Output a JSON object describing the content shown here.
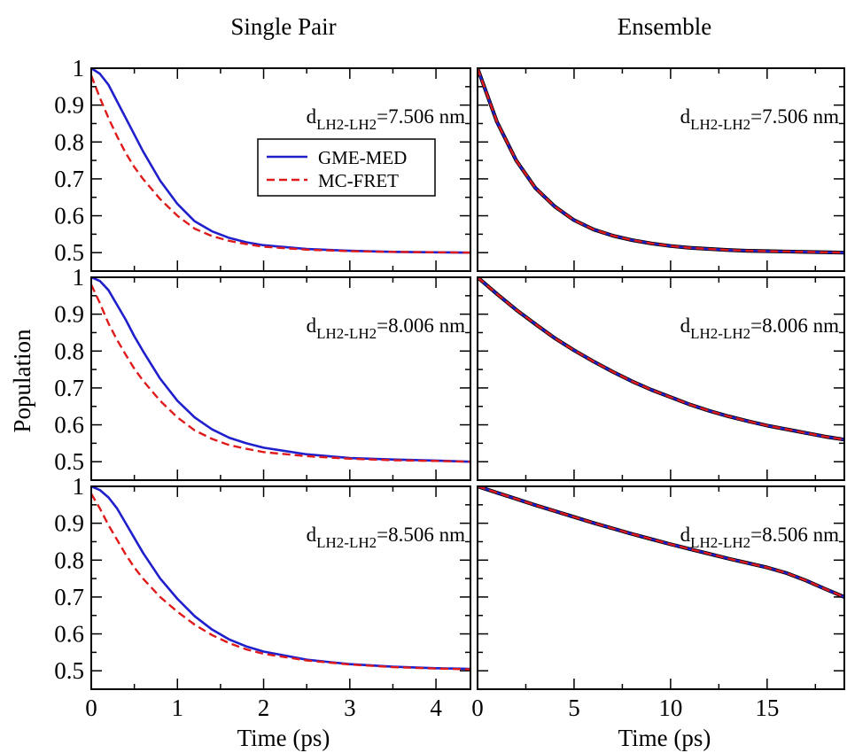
{
  "figure": {
    "column_titles": [
      "Single Pair",
      "Ensemble"
    ],
    "ylabel": "Population",
    "xlabel": "Time (ps)"
  },
  "colors": {
    "gme_med": "#1f1fcc",
    "mc_fret": "#e01a1a",
    "ensemble_underlay": "#000000"
  },
  "legend": {
    "placement": "top-center of top-left panel",
    "entries": [
      "GME-MED",
      "MC-FRET"
    ]
  },
  "chart_data": [
    {
      "type": "line",
      "panel": "single-pair-top",
      "column": 0,
      "row": 0,
      "annotation": {
        "main": "d",
        "sub": "LH2-LH2",
        "value": "=7.506 nm"
      },
      "xlim": [
        0,
        4.4
      ],
      "ylim": [
        0.45,
        1.0
      ],
      "grid": false,
      "series": [
        {
          "name": "GME-MED",
          "style": "solid",
          "x": [
            0,
            0.1,
            0.2,
            0.3,
            0.4,
            0.5,
            0.6,
            0.8,
            1.0,
            1.2,
            1.4,
            1.6,
            1.8,
            2.0,
            2.5,
            3.0,
            3.5,
            4.0,
            4.4
          ],
          "y": [
            1.0,
            0.985,
            0.955,
            0.91,
            0.865,
            0.82,
            0.775,
            0.695,
            0.632,
            0.585,
            0.558,
            0.54,
            0.528,
            0.52,
            0.51,
            0.505,
            0.502,
            0.501,
            0.5
          ]
        },
        {
          "name": "MC-FRET",
          "style": "dashed",
          "x": [
            0,
            0.1,
            0.2,
            0.3,
            0.4,
            0.5,
            0.6,
            0.8,
            1.0,
            1.2,
            1.4,
            1.6,
            1.8,
            2.0,
            2.5,
            3.0,
            3.5,
            4.0,
            4.4
          ],
          "y": [
            0.98,
            0.92,
            0.865,
            0.815,
            0.77,
            0.732,
            0.7,
            0.645,
            0.6,
            0.565,
            0.545,
            0.532,
            0.523,
            0.516,
            0.508,
            0.504,
            0.502,
            0.501,
            0.5
          ]
        }
      ]
    },
    {
      "type": "line",
      "panel": "single-pair-middle",
      "column": 0,
      "row": 1,
      "annotation": {
        "main": "d",
        "sub": "LH2-LH2",
        "value": "=8.006 nm"
      },
      "xlim": [
        0,
        4.4
      ],
      "ylim": [
        0.45,
        1.0
      ],
      "grid": false,
      "series": [
        {
          "name": "GME-MED",
          "style": "solid",
          "x": [
            0,
            0.1,
            0.2,
            0.3,
            0.4,
            0.5,
            0.6,
            0.8,
            1.0,
            1.2,
            1.4,
            1.6,
            1.8,
            2.0,
            2.5,
            3.0,
            3.5,
            4.0,
            4.4
          ],
          "y": [
            1.0,
            0.99,
            0.965,
            0.925,
            0.885,
            0.84,
            0.8,
            0.725,
            0.665,
            0.62,
            0.588,
            0.565,
            0.55,
            0.538,
            0.52,
            0.51,
            0.506,
            0.503,
            0.5
          ]
        },
        {
          "name": "MC-FRET",
          "style": "dashed",
          "x": [
            0,
            0.1,
            0.2,
            0.3,
            0.4,
            0.5,
            0.6,
            0.8,
            1.0,
            1.2,
            1.4,
            1.6,
            1.8,
            2.0,
            2.5,
            3.0,
            3.5,
            4.0,
            4.4
          ],
          "y": [
            0.98,
            0.93,
            0.875,
            0.83,
            0.79,
            0.752,
            0.72,
            0.665,
            0.62,
            0.585,
            0.562,
            0.545,
            0.535,
            0.526,
            0.515,
            0.508,
            0.504,
            0.502,
            0.5
          ]
        }
      ]
    },
    {
      "type": "line",
      "panel": "single-pair-bottom",
      "column": 0,
      "row": 2,
      "annotation": {
        "main": "d",
        "sub": "LH2-LH2",
        "value": "=8.506 nm"
      },
      "xlim": [
        0,
        4.4
      ],
      "ylim": [
        0.45,
        1.0
      ],
      "grid": false,
      "series": [
        {
          "name": "GME-MED",
          "style": "solid",
          "x": [
            0,
            0.1,
            0.2,
            0.3,
            0.4,
            0.5,
            0.6,
            0.8,
            1.0,
            1.2,
            1.4,
            1.6,
            1.8,
            2.0,
            2.5,
            3.0,
            3.5,
            4.0,
            4.4
          ],
          "y": [
            1.0,
            0.99,
            0.97,
            0.94,
            0.9,
            0.86,
            0.82,
            0.75,
            0.695,
            0.648,
            0.612,
            0.585,
            0.566,
            0.552,
            0.53,
            0.518,
            0.511,
            0.507,
            0.505
          ]
        },
        {
          "name": "MC-FRET",
          "style": "dashed",
          "x": [
            0,
            0.1,
            0.2,
            0.3,
            0.4,
            0.5,
            0.6,
            0.8,
            1.0,
            1.2,
            1.4,
            1.6,
            1.8,
            2.0,
            2.5,
            3.0,
            3.5,
            4.0,
            4.4
          ],
          "y": [
            0.98,
            0.94,
            0.895,
            0.855,
            0.815,
            0.78,
            0.75,
            0.7,
            0.66,
            0.625,
            0.597,
            0.575,
            0.558,
            0.546,
            0.528,
            0.517,
            0.51,
            0.506,
            0.504
          ]
        }
      ]
    },
    {
      "type": "line",
      "panel": "ensemble-top",
      "column": 1,
      "row": 0,
      "annotation": {
        "main": "d",
        "sub": "LH2-LH2",
        "value": "=7.506 nm"
      },
      "xlim": [
        0,
        19
      ],
      "ylim": [
        0.45,
        1.0
      ],
      "grid": false,
      "series": [
        {
          "name": "GME-MED",
          "style": "solid",
          "x": [
            0,
            1,
            2,
            3,
            4,
            5,
            6,
            7,
            8,
            9,
            10,
            11,
            12,
            13,
            14,
            15,
            16,
            17,
            18,
            19
          ],
          "y": [
            1.0,
            0.855,
            0.75,
            0.675,
            0.625,
            0.588,
            0.563,
            0.546,
            0.534,
            0.525,
            0.518,
            0.513,
            0.51,
            0.507,
            0.505,
            0.504,
            0.503,
            0.502,
            0.501,
            0.5
          ]
        },
        {
          "name": "MC-FRET",
          "style": "dashed",
          "x": [
            0,
            1,
            2,
            3,
            4,
            5,
            6,
            7,
            8,
            9,
            10,
            11,
            12,
            13,
            14,
            15,
            16,
            17,
            18,
            19
          ],
          "y": [
            1.0,
            0.855,
            0.75,
            0.675,
            0.625,
            0.588,
            0.563,
            0.546,
            0.534,
            0.525,
            0.518,
            0.513,
            0.51,
            0.507,
            0.505,
            0.504,
            0.503,
            0.502,
            0.501,
            0.5
          ]
        }
      ]
    },
    {
      "type": "line",
      "panel": "ensemble-middle",
      "column": 1,
      "row": 1,
      "annotation": {
        "main": "d",
        "sub": "LH2-LH2",
        "value": "=8.006 nm"
      },
      "xlim": [
        0,
        19
      ],
      "ylim": [
        0.45,
        1.0
      ],
      "grid": false,
      "series": [
        {
          "name": "GME-MED",
          "style": "solid",
          "x": [
            0,
            1,
            2,
            3,
            4,
            5,
            6,
            7,
            8,
            9,
            10,
            11,
            12,
            13,
            14,
            15,
            16,
            17,
            18,
            19
          ],
          "y": [
            1.0,
            0.955,
            0.912,
            0.873,
            0.835,
            0.802,
            0.772,
            0.744,
            0.718,
            0.695,
            0.675,
            0.655,
            0.638,
            0.623,
            0.61,
            0.598,
            0.588,
            0.578,
            0.568,
            0.56
          ]
        },
        {
          "name": "MC-FRET",
          "style": "dashed",
          "x": [
            0,
            1,
            2,
            3,
            4,
            5,
            6,
            7,
            8,
            9,
            10,
            11,
            12,
            13,
            14,
            15,
            16,
            17,
            18,
            19
          ],
          "y": [
            1.0,
            0.955,
            0.912,
            0.873,
            0.835,
            0.802,
            0.772,
            0.744,
            0.718,
            0.695,
            0.675,
            0.655,
            0.638,
            0.623,
            0.61,
            0.598,
            0.588,
            0.578,
            0.568,
            0.56
          ]
        }
      ]
    },
    {
      "type": "line",
      "panel": "ensemble-bottom",
      "column": 1,
      "row": 2,
      "annotation": {
        "main": "d",
        "sub": "LH2-LH2",
        "value": "=8.506 nm"
      },
      "xlim": [
        0,
        19
      ],
      "ylim": [
        0.45,
        1.0
      ],
      "grid": false,
      "series": [
        {
          "name": "GME-MED",
          "style": "solid",
          "x": [
            0,
            1,
            2,
            3,
            4,
            5,
            6,
            7,
            8,
            9,
            10,
            11,
            12,
            13,
            14,
            15,
            16,
            17,
            18,
            19
          ],
          "y": [
            1.0,
            0.983,
            0.966,
            0.949,
            0.933,
            0.917,
            0.901,
            0.886,
            0.871,
            0.857,
            0.843,
            0.83,
            0.817,
            0.804,
            0.792,
            0.78,
            0.765,
            0.745,
            0.722,
            0.7
          ]
        },
        {
          "name": "MC-FRET",
          "style": "dashed",
          "x": [
            0,
            1,
            2,
            3,
            4,
            5,
            6,
            7,
            8,
            9,
            10,
            11,
            12,
            13,
            14,
            15,
            16,
            17,
            18,
            19
          ],
          "y": [
            1.0,
            0.983,
            0.966,
            0.949,
            0.933,
            0.917,
            0.901,
            0.886,
            0.871,
            0.857,
            0.843,
            0.83,
            0.817,
            0.804,
            0.792,
            0.78,
            0.765,
            0.745,
            0.722,
            0.7
          ]
        }
      ]
    }
  ],
  "axes": {
    "left": {
      "xticks": [
        0,
        1,
        2,
        3,
        4
      ],
      "xticklabels": [
        "0",
        "1",
        "2",
        "3",
        "4"
      ]
    },
    "right": {
      "xticks": [
        0,
        5,
        10,
        15
      ],
      "xticklabels": [
        "0",
        "5",
        "10",
        "15"
      ]
    },
    "yticks": [
      0.5,
      0.6,
      0.7,
      0.8,
      0.9,
      1.0
    ],
    "yticklabels": [
      "0.5",
      "0.6",
      "0.7",
      "0.8",
      "0.9",
      "1"
    ]
  }
}
